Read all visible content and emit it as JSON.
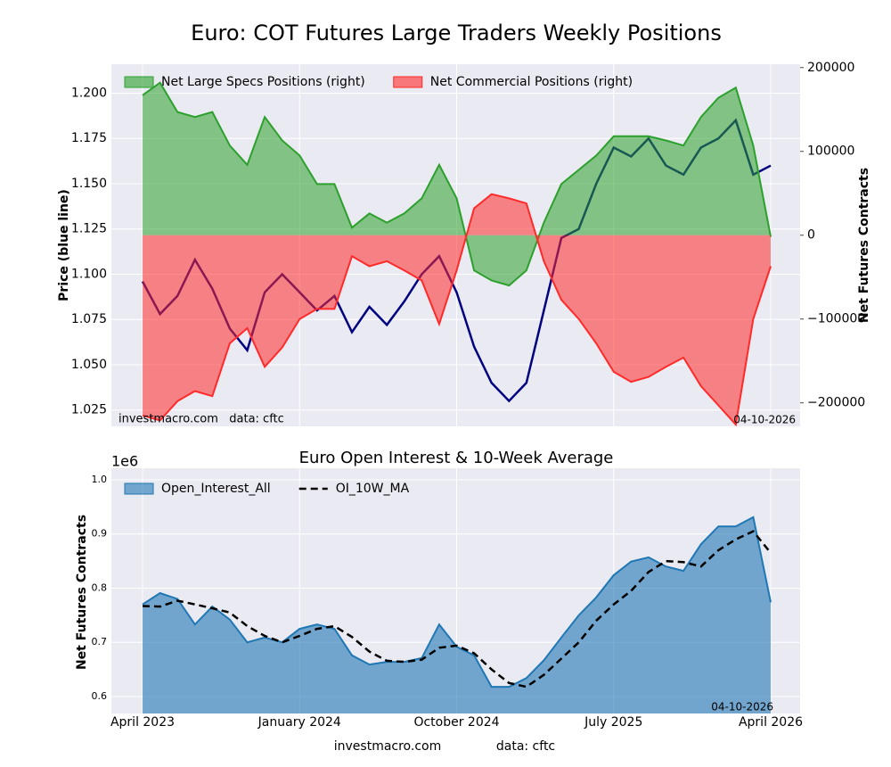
{
  "chart_data": [
    {
      "type": "combo",
      "title": "Euro: COT Futures Large Traders Weekly Positions",
      "x": [
        "2023-04",
        "2023-05",
        "2023-06",
        "2023-07",
        "2023-08",
        "2023-09",
        "2023-10",
        "2023-11",
        "2023-12",
        "2024-01",
        "2024-02",
        "2024-03",
        "2024-04",
        "2024-05",
        "2024-06",
        "2024-07",
        "2024-08",
        "2024-09",
        "2024-10",
        "2024-11",
        "2024-12",
        "2025-01",
        "2025-02",
        "2025-03",
        "2025-04",
        "2025-05",
        "2025-06",
        "2025-07",
        "2025-08",
        "2025-09",
        "2025-10",
        "2025-11",
        "2025-12",
        "2026-01",
        "2026-02",
        "2026-03",
        "2026-04"
      ],
      "ylabel": "Price (blue line)",
      "y2label": "Net Futures Contracts",
      "ylim": [
        1.016,
        1.216
      ],
      "yticks": [
        1.025,
        {
          "value": 1.05,
          "label": "1.050"
        },
        {
          "value": 1.075,
          "label": "1.075"
        },
        {
          "value": 1.1,
          "label": "1.100"
        },
        1.125,
        {
          "value": 1.15,
          "label": "1.150"
        },
        1.175,
        {
          "value": 1.2,
          "label": "1.200"
        }
      ],
      "y2lim": [
        -228000,
        204000
      ],
      "y2ticks": [
        {
          "value": -200000,
          "label": "−200000"
        },
        {
          "value": -100000,
          "label": "−100000"
        },
        0,
        100000,
        200000
      ],
      "grid": true,
      "legend": "upper left",
      "series": [
        {
          "type": "line",
          "axis": "y",
          "color": "#000080",
          "values": [
            1.096,
            1.078,
            1.088,
            1.108,
            1.092,
            1.07,
            1.058,
            1.09,
            1.1,
            1.09,
            1.08,
            1.088,
            1.068,
            1.082,
            1.072,
            1.085,
            1.1,
            1.11,
            1.09,
            1.06,
            1.04,
            1.03,
            1.04,
            1.08,
            1.12,
            1.125,
            1.15,
            1.17,
            1.165,
            1.175,
            1.16,
            1.155,
            1.17,
            1.175,
            1.185,
            1.155,
            1.16
          ]
        },
        {
          "name": "Net Large Specs Positions (right)",
          "type": "area",
          "axis": "y2",
          "color": "#2ca02c",
          "values": [
            167000,
            182000,
            147000,
            141000,
            147000,
            107000,
            84000,
            141000,
            113000,
            95000,
            61000,
            61000,
            9000,
            26000,
            15000,
            26000,
            44000,
            84000,
            44000,
            -42000,
            -54000,
            -60000,
            -42000,
            15000,
            61000,
            78000,
            95000,
            118000,
            118000,
            118000,
            113000,
            107000,
            141000,
            164000,
            176000,
            107000,
            -2000
          ]
        },
        {
          "name": "Net Commercial Positions (right)",
          "type": "area",
          "axis": "y2",
          "color": "#ff2a2a",
          "values": [
            -215000,
            -221000,
            -198000,
            -186000,
            -192000,
            -129000,
            -111000,
            -157000,
            -134000,
            -100000,
            -88000,
            -88000,
            -25000,
            -37000,
            -31000,
            -42000,
            -54000,
            -106000,
            -42000,
            32000,
            49000,
            44000,
            38000,
            -31000,
            -77000,
            -100000,
            -129000,
            -163000,
            -175000,
            -169000,
            -157000,
            -146000,
            -180000,
            -203000,
            -226000,
            -100000,
            -37000
          ]
        }
      ],
      "source_note": "investmacro.com   data: cftc",
      "date_note": "04-10-2026"
    },
    {
      "type": "combo",
      "title": "Euro Open Interest & 10-Week Average",
      "x": [
        "2023-04",
        "2023-05",
        "2023-06",
        "2023-07",
        "2023-08",
        "2023-09",
        "2023-10",
        "2023-11",
        "2023-12",
        "2024-01",
        "2024-02",
        "2024-03",
        "2024-04",
        "2024-05",
        "2024-06",
        "2024-07",
        "2024-08",
        "2024-09",
        "2024-10",
        "2024-11",
        "2024-12",
        "2025-01",
        "2025-02",
        "2025-03",
        "2025-04",
        "2025-05",
        "2025-06",
        "2025-07",
        "2025-08",
        "2025-09",
        "2025-10",
        "2025-11",
        "2025-12",
        "2026-01",
        "2026-02",
        "2026-03",
        "2026-04"
      ],
      "ylabel": "Net Futures Contracts",
      "offset_text": "1e6",
      "ylim": [
        0.5687,
        1.0214
      ],
      "yticks": [
        0.6,
        0.7,
        0.8,
        0.9,
        {
          "value": 1,
          "label": "1.0"
        }
      ],
      "xticks": [
        {
          "value": "2023-04",
          "label": "April 2023"
        },
        {
          "value": "2024-01",
          "label": "January 2024"
        },
        {
          "value": "2024-10",
          "label": "October 2024"
        },
        {
          "value": "2025-07",
          "label": "July 2025"
        },
        {
          "value": "2026-04",
          "label": "April 2026"
        }
      ],
      "grid": true,
      "legend": "upper left",
      "series": [
        {
          "name": "Open_Interest_All",
          "type": "area",
          "color": "#1f77b4",
          "values": [
            0.77,
            0.791,
            0.78,
            0.733,
            0.766,
            0.742,
            0.7,
            0.709,
            0.7,
            0.725,
            0.733,
            0.725,
            0.676,
            0.659,
            0.664,
            0.664,
            0.671,
            0.733,
            0.692,
            0.676,
            0.618,
            0.618,
            0.634,
            0.667,
            0.709,
            0.75,
            0.783,
            0.824,
            0.849,
            0.857,
            0.84,
            0.832,
            0.881,
            0.914,
            0.914,
            0.931,
            0.774
          ]
        },
        {
          "name": "OI_10W_MA",
          "type": "line",
          "dashed": true,
          "color": "#000000",
          "values": [
            0.767,
            0.766,
            0.777,
            0.77,
            0.763,
            0.755,
            0.73,
            0.712,
            0.7,
            0.712,
            0.725,
            0.73,
            0.71,
            0.683,
            0.666,
            0.664,
            0.668,
            0.69,
            0.694,
            0.68,
            0.65,
            0.625,
            0.618,
            0.64,
            0.67,
            0.7,
            0.74,
            0.77,
            0.795,
            0.83,
            0.85,
            0.848,
            0.84,
            0.87,
            0.89,
            0.905,
            0.865
          ]
        }
      ],
      "date_note": "04-10-2026",
      "footer_site": "investmacro.com",
      "footer_source": "data: cftc"
    }
  ]
}
